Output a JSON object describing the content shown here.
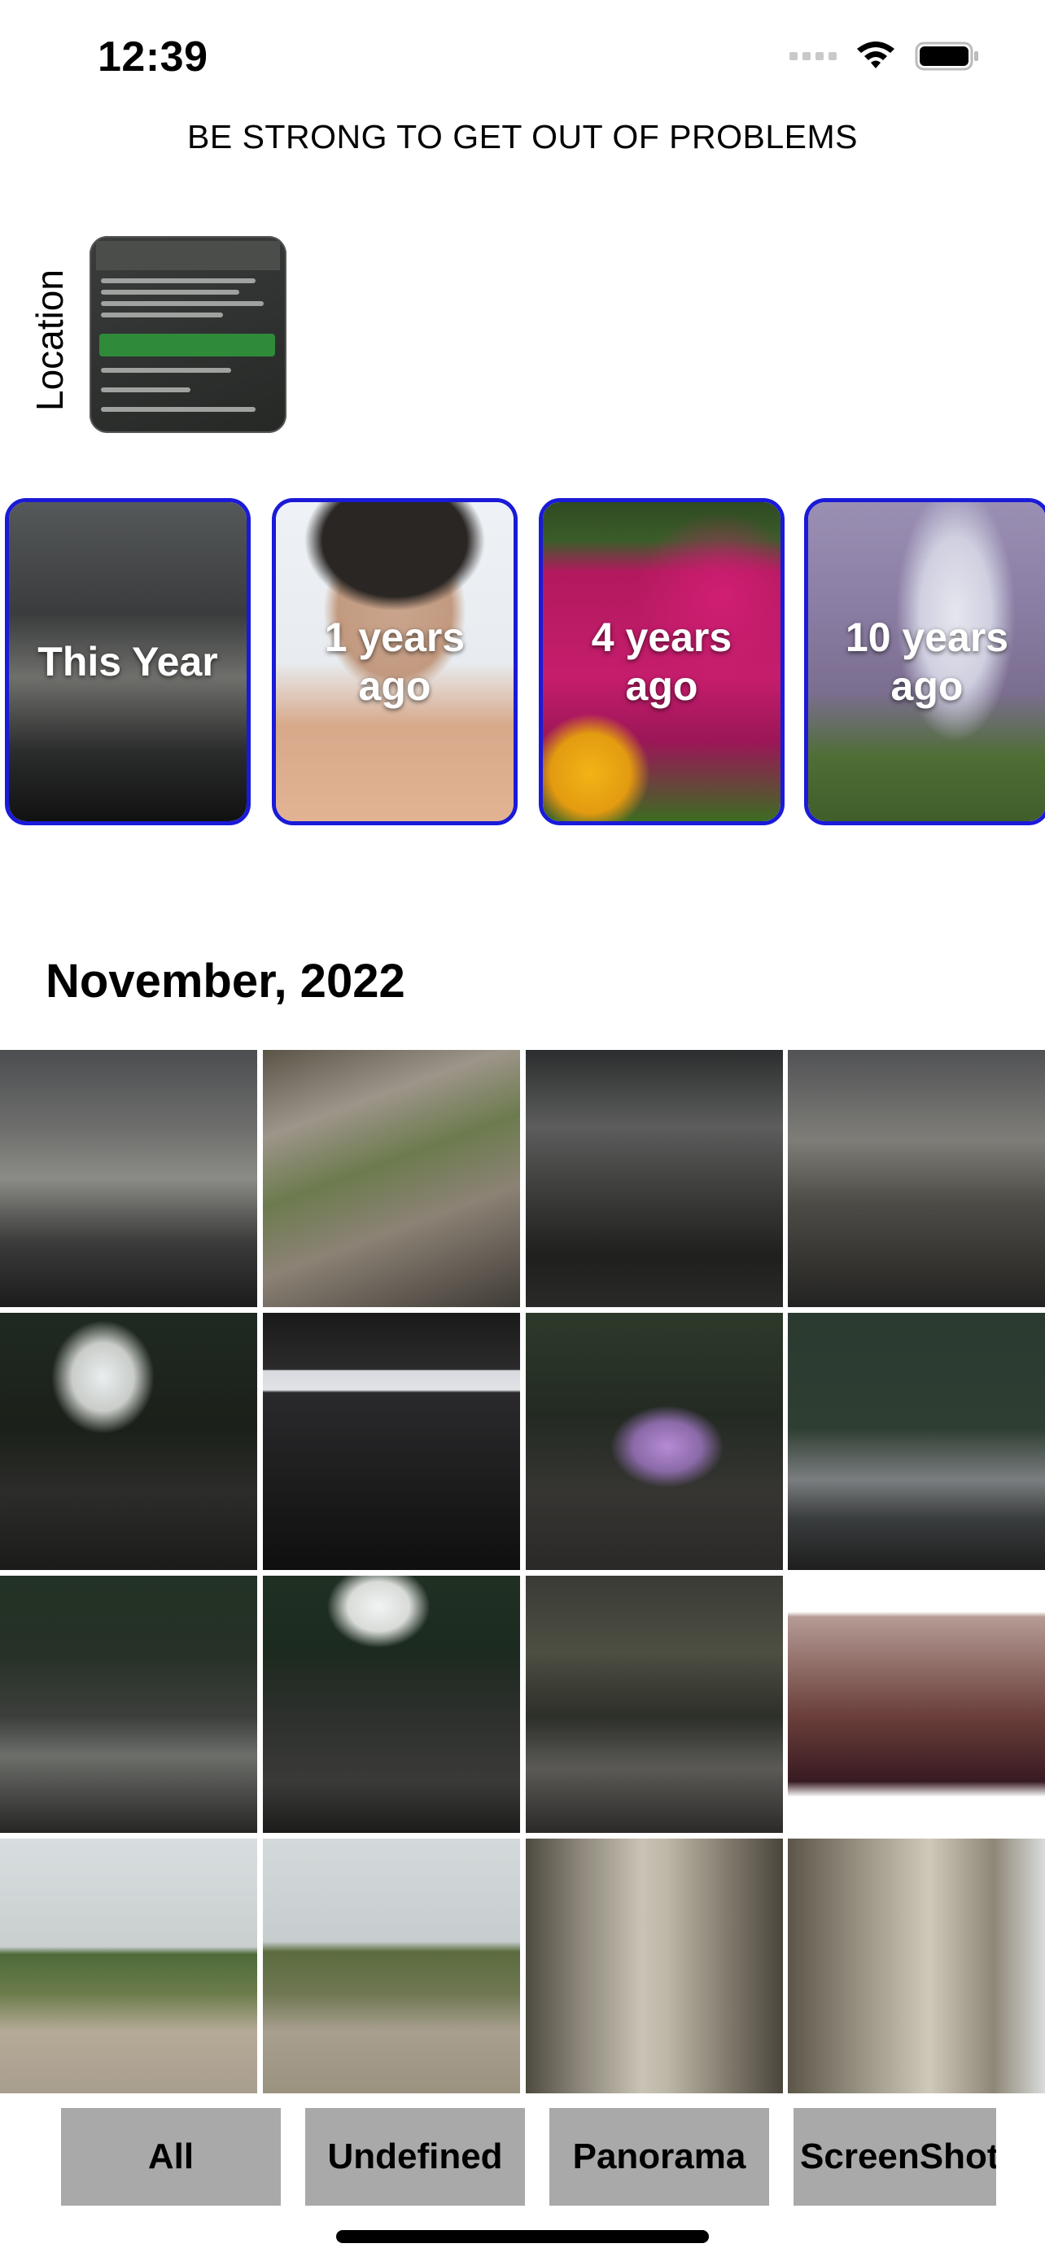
{
  "status_bar": {
    "time": "12:39"
  },
  "header": {
    "title": "BE STRONG TO GET OUT OF PROBLEMS"
  },
  "location": {
    "label": "Location"
  },
  "memories": [
    {
      "label": "This Year"
    },
    {
      "label": "1 years ago"
    },
    {
      "label": "4 years ago"
    },
    {
      "label": "10 years ago"
    }
  ],
  "section": {
    "month": "November, 2022"
  },
  "filters": [
    {
      "label": "All"
    },
    {
      "label": "Undefined"
    },
    {
      "label": "Panorama"
    },
    {
      "label": "ScreenShot"
    }
  ],
  "colors": {
    "card_border": "#1a1ad8",
    "filter_bg": "#a9a9a9"
  }
}
